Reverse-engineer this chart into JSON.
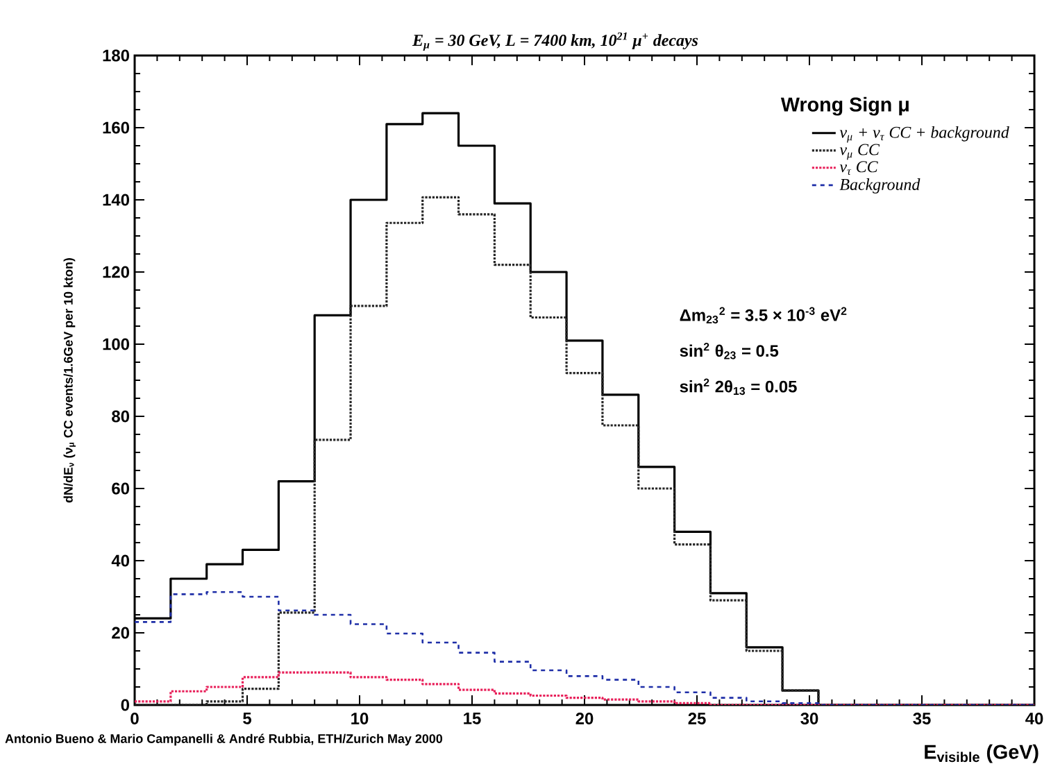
{
  "chart_data": {
    "type": "histogram",
    "title": "E$_{μ}$ = 30 GeV, L = 7400 km, 10$^{21}$ μ$^{+}$ decays",
    "xlabel": "E$_{visible}$ (GeV)",
    "ylabel": "dN/dE$_{ν}$ (ν$_{μ}$ CC events/1.6GeV per 10 kton)",
    "legend_title": "Wrong Sign μ",
    "bins": [
      0,
      1.6,
      3.2,
      4.8,
      6.4,
      8.0,
      9.6,
      11.2,
      12.8,
      14.4,
      16.0,
      17.6,
      19.2,
      20.8,
      22.4,
      24.0,
      25.6,
      27.2,
      28.8,
      30.4,
      32.0,
      33.6,
      35.2,
      36.8,
      38.4,
      40.0
    ],
    "series": [
      {
        "name": "ν$_{μ}$ + ν$_{τ}$ CC + background",
        "color": "#000000",
        "line_style": "solid",
        "values": [
          24,
          35,
          39,
          43,
          62,
          108,
          140,
          161,
          164,
          155,
          139,
          120,
          101,
          86,
          66,
          48,
          31,
          16,
          4,
          0,
          0,
          0,
          0,
          0,
          0
        ]
      },
      {
        "name": "ν$_{μ}$ CC",
        "color": "#262626",
        "line_style": "dotted",
        "values": [
          0,
          0,
          1,
          4.5,
          25.6,
          73.5,
          110.6,
          133.6,
          140.7,
          136,
          122,
          107.4,
          92,
          77.5,
          60,
          44.5,
          29,
          15,
          4,
          0,
          0,
          0,
          0,
          0,
          0
        ]
      },
      {
        "name": "ν$_{τ}$ CC",
        "color": "#e8205a",
        "line_style": "dotted",
        "values": [
          1,
          3.8,
          5,
          7.7,
          9,
          9,
          7.7,
          7,
          5.8,
          4.2,
          3.2,
          2.6,
          2,
          1.5,
          1,
          0.5,
          0,
          0,
          0,
          0,
          0,
          0,
          0,
          0,
          0
        ]
      },
      {
        "name": "Background",
        "color": "#1f2fa8",
        "line_style": "dashed",
        "values": [
          23,
          30.7,
          31.3,
          30,
          26.2,
          25,
          22.4,
          19.8,
          17.3,
          14.5,
          12,
          9.6,
          8,
          7,
          5,
          3.5,
          2,
          1,
          0.5,
          0,
          0,
          0,
          0,
          0,
          0
        ]
      }
    ],
    "xlim": [
      0,
      40
    ],
    "ylim": [
      0,
      180
    ],
    "xticks": [
      0,
      5,
      10,
      15,
      20,
      25,
      30,
      35,
      40
    ],
    "yticks": [
      0,
      20,
      40,
      60,
      80,
      100,
      120,
      140,
      160,
      180
    ],
    "grid": false,
    "legend": "top right",
    "annotations": [
      "Δm$_{23}$$^{2}$ = 3.5 × 10$^{-3}$ eV$^{2}$",
      "sin$^{2}$ θ$_{23}$ = 0.5",
      "sin$^{2}$ 2θ$_{13}$ = 0.05",
      "Antonio Bueno & Mario Campanelli & André Rubbia, ETH/Zurich May 2000"
    ]
  }
}
